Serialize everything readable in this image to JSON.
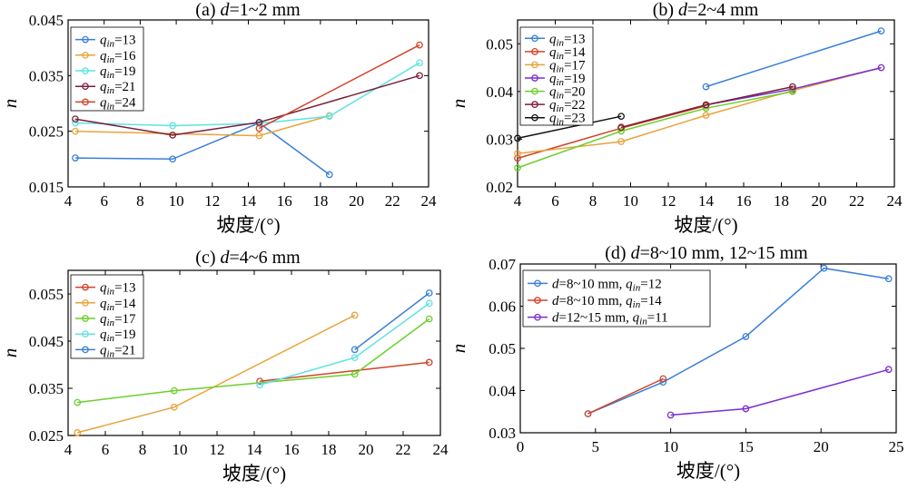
{
  "chart_data": [
    {
      "type": "line",
      "title": "(a) d=1~2 mm",
      "title_prefix": "(a) ",
      "title_var": "d",
      "title_rest": "=1~2 mm",
      "xlabel": "坡度/(°)",
      "ylabel": "n",
      "xlim": [
        4,
        24
      ],
      "ylim": [
        0.015,
        0.045
      ],
      "xticks": [
        "4",
        "6",
        "8",
        "10",
        "12",
        "14",
        "16",
        "18",
        "20",
        "22",
        "24"
      ],
      "yticks": [
        "0.015",
        "0.025",
        "0.035",
        "0.045"
      ],
      "legend_position": "top-left",
      "series": [
        {
          "name": "qin=13",
          "legend_var": "q",
          "legend_sub": "in",
          "legend_val": "=13",
          "color": "#3a7fd8",
          "x": [
            4.4,
            9.8,
            14.6,
            18.5
          ],
          "y": [
            0.0202,
            0.02,
            0.0265,
            0.0172
          ]
        },
        {
          "name": "qin=16",
          "legend_var": "q",
          "legend_sub": "in",
          "legend_val": "=16",
          "color": "#e8a33a",
          "x": [
            4.4,
            14.6,
            18.5
          ],
          "y": [
            0.025,
            0.0242,
            0.0278
          ]
        },
        {
          "name": "qin=19",
          "legend_var": "q",
          "legend_sub": "in",
          "legend_val": "=19",
          "color": "#5fe3e3",
          "x": [
            4.4,
            9.8,
            14.6,
            18.5,
            23.5
          ],
          "y": [
            0.0265,
            0.026,
            0.0264,
            0.0277,
            0.0373
          ]
        },
        {
          "name": "qin=21",
          "legend_var": "q",
          "legend_sub": "in",
          "legend_val": "=21",
          "color": "#7a1f3a",
          "x": [
            4.4,
            9.8,
            14.6,
            23.5
          ],
          "y": [
            0.0272,
            0.0243,
            0.0266,
            0.035
          ]
        },
        {
          "name": "qin=24",
          "legend_var": "q",
          "legend_sub": "in",
          "legend_val": "=24",
          "color": "#d2432a",
          "x": [
            14.6,
            23.5
          ],
          "y": [
            0.0255,
            0.0405
          ]
        }
      ]
    },
    {
      "type": "line",
      "title": "(b) d=2~4 mm",
      "title_prefix": "(b) ",
      "title_var": "d",
      "title_rest": "=2~4 mm",
      "xlabel": "坡度/(°)",
      "ylabel": "n",
      "xlim": [
        4,
        24
      ],
      "ylim": [
        0.02,
        0.055
      ],
      "xticks": [
        "4",
        "6",
        "8",
        "10",
        "12",
        "14",
        "16",
        "18",
        "20",
        "22",
        "24"
      ],
      "yticks": [
        "0.02",
        "0.03",
        "0.04",
        "0.05"
      ],
      "legend_position": "top-left",
      "series": [
        {
          "name": "qin=13",
          "legend_var": "q",
          "legend_sub": "in",
          "legend_val": "=13",
          "color": "#3a7fd8",
          "x": [
            14.0,
            23.3
          ],
          "y": [
            0.041,
            0.0527
          ]
        },
        {
          "name": "qin=14",
          "legend_var": "q",
          "legend_sub": "in",
          "legend_val": "=14",
          "color": "#d2432a",
          "x": [
            4.0,
            9.5,
            14.0
          ],
          "y": [
            0.026,
            0.0323,
            0.037
          ]
        },
        {
          "name": "qin=17",
          "legend_var": "q",
          "legend_sub": "in",
          "legend_val": "=17",
          "color": "#e8a33a",
          "x": [
            4.0,
            9.5,
            14.0,
            18.6,
            23.3
          ],
          "y": [
            0.027,
            0.0295,
            0.035,
            0.0402,
            0.045
          ]
        },
        {
          "name": "qin=19",
          "legend_var": "q",
          "legend_sub": "in",
          "legend_val": "=19",
          "color": "#7a2fd0",
          "x": [
            14.0,
            18.6,
            23.3
          ],
          "y": [
            0.0372,
            0.0405,
            0.045
          ]
        },
        {
          "name": "qin=20",
          "legend_var": "q",
          "legend_sub": "in",
          "legend_val": "=20",
          "color": "#6ccf2a",
          "x": [
            4.0,
            9.5,
            14.0,
            18.6
          ],
          "y": [
            0.024,
            0.0317,
            0.0365,
            0.04
          ]
        },
        {
          "name": "qin=22",
          "legend_var": "q",
          "legend_sub": "in",
          "legend_val": "=22",
          "color": "#7a1f3a",
          "x": [
            9.5,
            14.0,
            18.6
          ],
          "y": [
            0.0325,
            0.0372,
            0.041
          ]
        },
        {
          "name": "qin=23",
          "legend_var": "q",
          "legend_sub": "in",
          "legend_val": "=23",
          "color": "#111111",
          "x": [
            4.0,
            9.5
          ],
          "y": [
            0.0302,
            0.0348
          ]
        }
      ]
    },
    {
      "type": "line",
      "title": "(c) d=4~6 mm",
      "title_prefix": "(c) ",
      "title_var": "d",
      "title_rest": "=4~6 mm",
      "xlabel": "坡度/(°)",
      "ylabel": "n",
      "xlim": [
        4,
        24
      ],
      "ylim": [
        0.025,
        0.06
      ],
      "xticks": [
        "4",
        "6",
        "8",
        "10",
        "12",
        "14",
        "16",
        "18",
        "20",
        "22",
        "24"
      ],
      "yticks": [
        "0.025",
        "0.035",
        "0.045",
        "0.055"
      ],
      "legend_position": "top-left",
      "series": [
        {
          "name": "qin=13",
          "legend_var": "q",
          "legend_sub": "in",
          "legend_val": "=13",
          "color": "#d2432a",
          "x": [
            14.3,
            23.4
          ],
          "y": [
            0.0365,
            0.0405
          ]
        },
        {
          "name": "qin=14",
          "legend_var": "q",
          "legend_sub": "in",
          "legend_val": "=14",
          "color": "#e8a33a",
          "x": [
            4.5,
            9.7,
            19.4
          ],
          "y": [
            0.0256,
            0.031,
            0.0505
          ]
        },
        {
          "name": "qin=17",
          "legend_var": "q",
          "legend_sub": "in",
          "legend_val": "=17",
          "color": "#6ccf2a",
          "x": [
            4.5,
            9.7,
            19.4,
            23.4
          ],
          "y": [
            0.032,
            0.0345,
            0.038,
            0.0497
          ]
        },
        {
          "name": "qin=19",
          "legend_var": "q",
          "legend_sub": "in",
          "legend_val": "=19",
          "color": "#5fe3e3",
          "x": [
            14.3,
            19.4,
            23.4
          ],
          "y": [
            0.0357,
            0.0415,
            0.053
          ]
        },
        {
          "name": "qin=21",
          "legend_var": "q",
          "legend_sub": "in",
          "legend_val": "=21",
          "color": "#3a7fd8",
          "x": [
            19.4,
            23.4
          ],
          "y": [
            0.0432,
            0.0552
          ]
        }
      ]
    },
    {
      "type": "line",
      "title": "(d) d=8~10 mm, 12~15 mm",
      "title_prefix": "(d) ",
      "title_var": "d",
      "title_rest": "=8~10 mm, 12~15 mm",
      "xlabel": "坡度/(°)",
      "ylabel": "n",
      "xlim": [
        0,
        25
      ],
      "ylim": [
        0.03,
        0.07
      ],
      "xticks": [
        "0",
        "5",
        "10",
        "15",
        "20",
        "25"
      ],
      "yticks": [
        "0.03",
        "0.04",
        "0.05",
        "0.06",
        "0.07"
      ],
      "legend_position": "top-left",
      "series": [
        {
          "name": "d=8~10 mm, qin=12",
          "legend_pre_var": "d",
          "legend_pre": "=8~10 mm, ",
          "legend_var": "q",
          "legend_sub": "in",
          "legend_val": "=12",
          "color": "#3a7fd8",
          "x": [
            4.5,
            9.5,
            15.0,
            20.2,
            24.5
          ],
          "y": [
            0.0345,
            0.042,
            0.0528,
            0.069,
            0.0665
          ]
        },
        {
          "name": "d=8~10 mm, qin=14",
          "legend_pre_var": "d",
          "legend_pre": "=8~10 mm, ",
          "legend_var": "q",
          "legend_sub": "in",
          "legend_val": "=14",
          "color": "#d2432a",
          "x": [
            4.5,
            9.5
          ],
          "y": [
            0.0345,
            0.0428
          ]
        },
        {
          "name": "d=12~15 mm, qin=11",
          "legend_pre_var": "d",
          "legend_pre": "=12~15 mm, ",
          "legend_var": "q",
          "legend_sub": "in",
          "legend_val": "=11",
          "color": "#7a2fd0",
          "x": [
            10.0,
            15.0,
            24.5
          ],
          "y": [
            0.0342,
            0.0357,
            0.045
          ]
        }
      ]
    }
  ]
}
